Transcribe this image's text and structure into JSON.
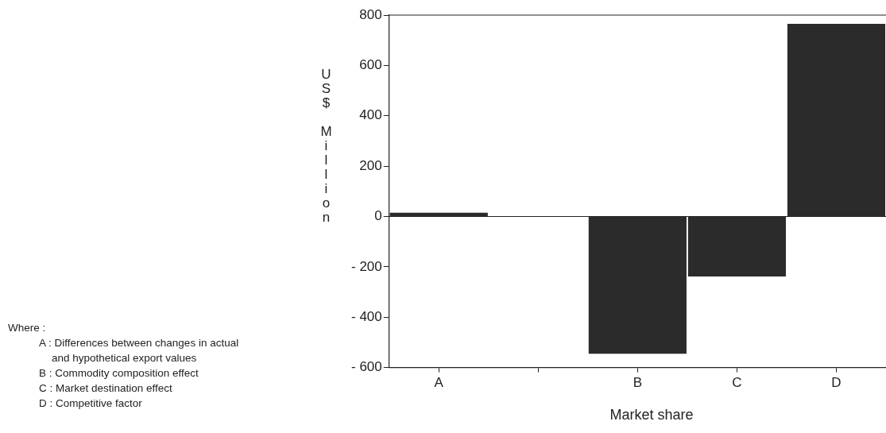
{
  "chart_data": {
    "type": "bar",
    "xlabel": "Market share",
    "ylabel": "US$ Million",
    "categories": [
      "A",
      null,
      "B",
      "C",
      "D"
    ],
    "values": [
      15,
      null,
      -545,
      -238,
      765
    ],
    "color": "#2b2b2b",
    "ylim": [
      -600,
      800
    ],
    "yticks": [
      {
        "value": -600,
        "label": "- 600"
      },
      {
        "value": -400,
        "label": "- 400"
      },
      {
        "value": -200,
        "label": "- 200"
      },
      0,
      200,
      400,
      600,
      800
    ],
    "grid": false,
    "legend": false,
    "ref_lines": [
      {
        "axis": "y",
        "value": 0
      }
    ],
    "annotations": [
      "Where :",
      "A : Differences between changes in actual and hypothetical export values",
      "B : Commodity composition effect",
      "C : Market destination effect",
      "D : Competitive factor"
    ]
  }
}
